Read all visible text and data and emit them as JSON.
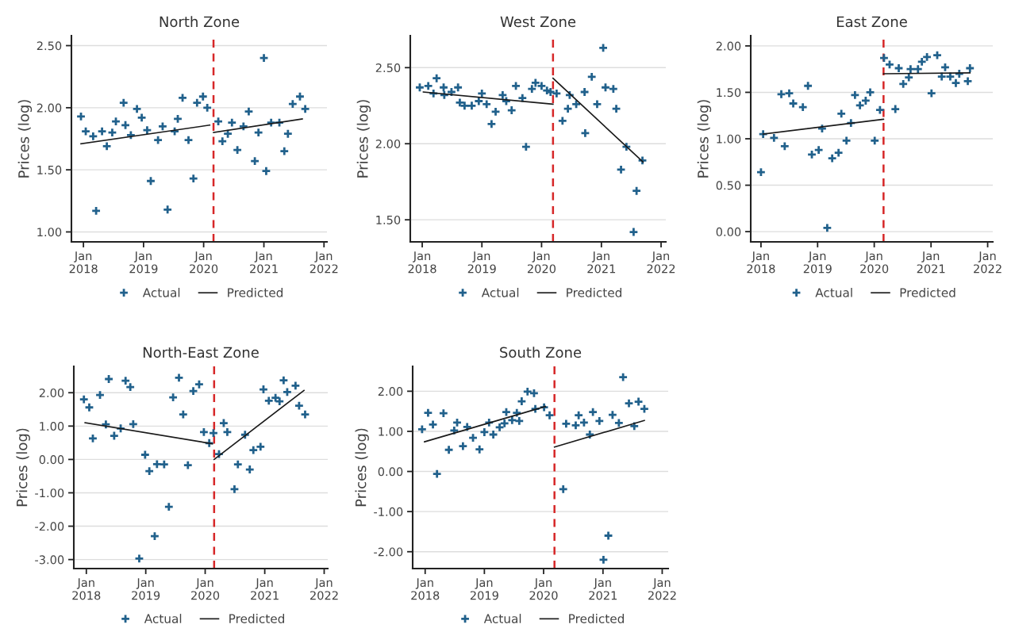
{
  "chart_data": [
    {
      "type": "scatter",
      "title": "North Zone",
      "ylabel": "Prices (log)",
      "xlim": [
        "2017-10-20",
        "2022-01-19"
      ],
      "ylim": [
        0.92,
        2.58
      ],
      "xticks": [
        {
          "value": "2018-01-01",
          "label": "Jan\n2018"
        },
        {
          "value": "2019-01-01",
          "label": "Jan\n2019"
        },
        {
          "value": "2020-01-01",
          "label": "Jan\n2020"
        },
        {
          "value": "2021-01-01",
          "label": "Jan\n2021"
        },
        {
          "value": "2022-01-01",
          "label": "Jan\n2022"
        }
      ],
      "yticks": [
        {
          "value": 1.0,
          "label": "1.00"
        },
        {
          "value": 1.5,
          "label": "1.50"
        },
        {
          "value": 2.0,
          "label": "2.00"
        },
        {
          "value": 2.5,
          "label": "2.50"
        }
      ],
      "grid": "y",
      "legend": "bottom",
      "ref_lines": [
        {
          "axis": "x",
          "value": "2020-03-01",
          "color": "#d62728",
          "line_style": "dashed"
        }
      ],
      "series": [
        {
          "name": "Actual",
          "type": "scatter",
          "marker": "cross",
          "color": "#21618c",
          "x": [
            "2017-12-17",
            "2018-01-15",
            "2018-03-01",
            "2018-03-19",
            "2018-04-24",
            "2018-05-23",
            "2018-06-25",
            "2018-07-17",
            "2018-09-02",
            "2018-09-13",
            "2018-10-16",
            "2018-11-22",
            "2018-12-21",
            "2019-01-23",
            "2019-02-14",
            "2019-03-30",
            "2019-04-27",
            "2019-05-27",
            "2019-07-09",
            "2019-07-28",
            "2019-08-26",
            "2019-10-01",
            "2019-10-31",
            "2019-11-22",
            "2019-12-28",
            "2020-01-23",
            "2020-03-30",
            "2020-04-24",
            "2020-05-27",
            "2020-06-21",
            "2020-07-24",
            "2020-08-30",
            "2020-10-01",
            "2020-11-07",
            "2020-11-29",
            "2021-01-01",
            "2021-01-15",
            "2021-02-14",
            "2021-04-05",
            "2021-05-05",
            "2021-05-27",
            "2021-06-25",
            "2021-08-08",
            "2021-09-09"
          ],
          "values": [
            1.93,
            1.81,
            1.77,
            1.17,
            1.81,
            1.69,
            1.8,
            1.89,
            2.04,
            1.86,
            1.78,
            1.99,
            1.92,
            1.82,
            1.41,
            1.74,
            1.85,
            1.18,
            1.81,
            1.91,
            2.08,
            1.74,
            1.43,
            2.04,
            2.09,
            2.0,
            1.89,
            1.73,
            1.79,
            1.88,
            1.66,
            1.85,
            1.97,
            1.57,
            1.8,
            2.4,
            1.49,
            1.88,
            1.88,
            1.65,
            1.79,
            2.03,
            2.09,
            1.99
          ]
        },
        {
          "name": "Predicted",
          "type": "line",
          "color": "#1a1a1a",
          "x": [
            "2017-12-17",
            "2020-02-07",
            null,
            "2020-03-01",
            "2021-08-22"
          ],
          "values": [
            1.71,
            1.86,
            null,
            1.8,
            1.91
          ]
        }
      ]
    },
    {
      "type": "scatter",
      "title": "West Zone",
      "ylabel": "Prices (log)",
      "xlim": [
        "2017-10-20",
        "2022-01-30"
      ],
      "ylim": [
        1.355,
        2.71
      ],
      "xticks": [
        {
          "value": "2018-01-01",
          "label": "Jan\n2018"
        },
        {
          "value": "2019-01-01",
          "label": "Jan\n2019"
        },
        {
          "value": "2020-01-01",
          "label": "Jan\n2020"
        },
        {
          "value": "2021-01-01",
          "label": "Jan\n2021"
        },
        {
          "value": "2022-01-01",
          "label": "Jan\n2022"
        }
      ],
      "yticks": [
        {
          "value": 1.5,
          "label": "1.50"
        },
        {
          "value": 2.0,
          "label": "2.00"
        },
        {
          "value": 2.5,
          "label": "2.50"
        }
      ],
      "grid": "y",
      "legend": "bottom",
      "ref_lines": [
        {
          "axis": "x",
          "value": "2020-03-11",
          "color": "#d62728",
          "line_style": "dashed"
        }
      ],
      "series": [
        {
          "name": "Actual",
          "type": "scatter",
          "marker": "cross",
          "color": "#21618c",
          "x": [
            "2017-12-17",
            "2018-02-07",
            "2018-03-11",
            "2018-03-30",
            "2018-05-12",
            "2018-05-16",
            "2018-06-29",
            "2018-08-08",
            "2018-08-19",
            "2018-09-17",
            "2018-10-31",
            "2018-12-13",
            "2019-01-01",
            "2019-01-30",
            "2019-03-01",
            "2019-03-26",
            "2019-05-08",
            "2019-05-30",
            "2019-07-02",
            "2019-07-28",
            "2019-09-06",
            "2019-09-28",
            "2019-11-03",
            "2019-11-25",
            "2020-01-01",
            "2020-02-03",
            "2020-02-25",
            "2020-04-02",
            "2020-05-08",
            "2020-06-10",
            "2020-06-21",
            "2020-07-31",
            "2020-09-20",
            "2020-09-24",
            "2020-11-03",
            "2020-12-06",
            "2021-01-12",
            "2021-01-26",
            "2021-03-15",
            "2021-04-02",
            "2021-05-01",
            "2021-06-03",
            "2021-07-17",
            "2021-08-04",
            "2021-09-09"
          ],
          "values": [
            2.37,
            2.38,
            2.33,
            2.43,
            2.37,
            2.32,
            2.34,
            2.37,
            2.27,
            2.25,
            2.25,
            2.28,
            2.33,
            2.26,
            2.13,
            2.21,
            2.32,
            2.28,
            2.22,
            2.38,
            2.3,
            1.98,
            2.36,
            2.4,
            2.38,
            2.35,
            2.34,
            2.33,
            2.15,
            2.23,
            2.32,
            2.26,
            2.34,
            2.07,
            2.44,
            2.26,
            2.63,
            2.37,
            2.36,
            2.23,
            1.83,
            1.98,
            1.42,
            1.69,
            1.89
          ]
        },
        {
          "name": "Predicted",
          "type": "line",
          "color": "#1a1a1a",
          "x": [
            "2018-01-08",
            "2020-03-11",
            null,
            "2020-03-11",
            "2021-09-13"
          ],
          "values": [
            2.34,
            2.26,
            null,
            2.43,
            1.88
          ]
        }
      ]
    },
    {
      "type": "scatter",
      "title": "East Zone",
      "ylabel": "Prices (log)",
      "xlim": [
        "2017-10-27",
        "2022-02-03"
      ],
      "ylim": [
        -0.11,
        2.11
      ],
      "xticks": [
        {
          "value": "2018-01-01",
          "label": "Jan\n2018"
        },
        {
          "value": "2019-01-01",
          "label": "Jan\n2019"
        },
        {
          "value": "2020-01-01",
          "label": "Jan\n2020"
        },
        {
          "value": "2021-01-01",
          "label": "Jan\n2021"
        },
        {
          "value": "2022-01-01",
          "label": "Jan\n2022"
        }
      ],
      "yticks": [
        {
          "value": 0.0,
          "label": "0.00"
        },
        {
          "value": 0.5,
          "label": "0.50"
        },
        {
          "value": 1.0,
          "label": "1.00"
        },
        {
          "value": 1.5,
          "label": "1.50"
        },
        {
          "value": 2.0,
          "label": "2.00"
        }
      ],
      "grid": "y",
      "legend": "bottom",
      "ref_lines": [
        {
          "axis": "x",
          "value": "2020-03-01",
          "color": "#d62728",
          "line_style": "dashed"
        }
      ],
      "series": [
        {
          "name": "Actual",
          "type": "scatter",
          "marker": "cross",
          "color": "#21618c",
          "x": [
            "2018-01-01",
            "2018-01-15",
            "2018-03-26",
            "2018-05-12",
            "2018-06-03",
            "2018-07-02",
            "2018-07-28",
            "2018-09-28",
            "2018-10-31",
            "2018-11-25",
            "2019-01-08",
            "2019-01-30",
            "2019-03-04",
            "2019-04-05",
            "2019-05-16",
            "2019-06-03",
            "2019-07-06",
            "2019-08-04",
            "2019-08-30",
            "2019-10-01",
            "2019-11-07",
            "2019-12-06",
            "2020-01-04",
            "2020-02-07",
            "2020-03-04",
            "2020-04-09",
            "2020-05-16",
            "2020-06-07",
            "2020-07-06",
            "2020-08-11",
            "2020-08-22",
            "2020-10-09",
            "2020-11-03",
            "2020-12-06",
            "2021-01-04",
            "2021-02-10",
            "2021-03-11",
            "2021-04-02",
            "2021-05-05",
            "2021-06-10",
            "2021-07-02",
            "2021-08-26",
            "2021-09-09"
          ],
          "values": [
            0.64,
            1.05,
            1.01,
            1.48,
            0.92,
            1.49,
            1.38,
            1.34,
            1.57,
            0.83,
            0.88,
            1.11,
            0.04,
            0.79,
            0.85,
            1.27,
            0.98,
            1.17,
            1.47,
            1.36,
            1.41,
            1.5,
            0.98,
            1.31,
            1.87,
            1.8,
            1.32,
            1.76,
            1.59,
            1.66,
            1.75,
            1.75,
            1.83,
            1.88,
            1.49,
            1.9,
            1.67,
            1.77,
            1.67,
            1.6,
            1.7,
            1.62,
            1.76
          ]
        },
        {
          "name": "Predicted",
          "type": "line",
          "color": "#1a1a1a",
          "x": [
            "2018-01-15",
            "2020-03-01",
            null,
            "2020-03-01",
            "2021-09-09"
          ],
          "values": [
            1.05,
            1.21,
            null,
            1.7,
            1.71
          ]
        }
      ]
    },
    {
      "type": "scatter",
      "title": "North-East Zone",
      "ylabel": "Prices (log)",
      "xlim": [
        "2017-10-16",
        "2022-01-23"
      ],
      "ylim": [
        -3.27,
        2.79
      ],
      "xticks": [
        {
          "value": "2018-01-01",
          "label": "Jan\n2018"
        },
        {
          "value": "2019-01-01",
          "label": "Jan\n2019"
        },
        {
          "value": "2020-01-01",
          "label": "Jan\n2020"
        },
        {
          "value": "2021-01-01",
          "label": "Jan\n2021"
        },
        {
          "value": "2022-01-01",
          "label": "Jan\n2022"
        }
      ],
      "yticks": [
        {
          "value": -3.0,
          "label": "-3.00"
        },
        {
          "value": -2.0,
          "label": "-2.00"
        },
        {
          "value": -1.0,
          "label": "-1.00"
        },
        {
          "value": 0.0,
          "label": "0.00"
        },
        {
          "value": 1.0,
          "label": "1.00"
        },
        {
          "value": 2.0,
          "label": "2.00"
        }
      ],
      "grid": "y",
      "legend": "bottom",
      "ref_lines": [
        {
          "axis": "x",
          "value": "2020-02-25",
          "color": "#d62728",
          "line_style": "dashed"
        }
      ],
      "series": [
        {
          "name": "Actual",
          "type": "scatter",
          "marker": "cross",
          "color": "#21618c",
          "x": [
            "2017-12-17",
            "2018-01-19",
            "2018-02-10",
            "2018-03-26",
            "2018-05-01",
            "2018-05-19",
            "2018-06-21",
            "2018-07-31",
            "2018-08-30",
            "2018-09-28",
            "2018-10-16",
            "2018-11-22",
            "2018-12-28",
            "2019-01-23",
            "2019-02-25",
            "2019-03-11",
            "2019-04-24",
            "2019-05-23",
            "2019-06-18",
            "2019-07-24",
            "2019-08-19",
            "2019-09-17",
            "2019-10-20",
            "2019-11-25",
            "2019-12-24",
            "2020-01-26",
            "2020-02-21",
            "2020-03-26",
            "2020-04-24",
            "2020-05-16",
            "2020-06-29",
            "2020-07-20",
            "2020-09-02",
            "2020-10-01",
            "2020-10-23",
            "2020-12-06",
            "2020-12-24",
            "2021-01-26",
            "2021-03-08",
            "2021-04-02",
            "2021-04-27",
            "2021-05-19",
            "2021-07-09",
            "2021-07-31",
            "2021-09-06"
          ],
          "values": [
            1.8,
            1.56,
            0.63,
            1.93,
            1.05,
            2.41,
            0.71,
            0.93,
            2.36,
            2.17,
            1.06,
            -2.97,
            0.14,
            -0.35,
            -2.3,
            -0.14,
            -0.15,
            -1.42,
            1.86,
            2.45,
            1.35,
            -0.17,
            2.05,
            2.25,
            0.82,
            0.49,
            0.79,
            0.16,
            1.09,
            0.82,
            -0.89,
            -0.15,
            0.74,
            -0.3,
            0.28,
            0.38,
            2.1,
            1.76,
            1.85,
            1.74,
            2.37,
            2.02,
            2.21,
            1.61,
            1.35
          ]
        },
        {
          "name": "Predicted",
          "type": "line",
          "color": "#1a1a1a",
          "x": [
            "2017-12-24",
            "2020-02-14",
            null,
            "2020-02-25",
            "2021-08-30"
          ],
          "values": [
            1.1,
            0.47,
            null,
            0.0,
            2.07
          ]
        }
      ]
    },
    {
      "type": "scatter",
      "title": "South Zone",
      "ylabel": "Prices (log)",
      "xlim": [
        "2017-10-16",
        "2022-02-07"
      ],
      "ylim": [
        -2.42,
        2.62
      ],
      "xticks": [
        {
          "value": "2018-01-01",
          "label": "Jan\n2018"
        },
        {
          "value": "2019-01-01",
          "label": "Jan\n2019"
        },
        {
          "value": "2020-01-01",
          "label": "Jan\n2020"
        },
        {
          "value": "2021-01-01",
          "label": "Jan\n2021"
        },
        {
          "value": "2022-01-01",
          "label": "Jan\n2022"
        }
      ],
      "yticks": [
        {
          "value": -2.0,
          "label": "-2.00"
        },
        {
          "value": -1.0,
          "label": "-1.00"
        },
        {
          "value": 0.0,
          "label": "0.00"
        },
        {
          "value": 1.0,
          "label": "1.00"
        },
        {
          "value": 2.0,
          "label": "2.00"
        }
      ],
      "grid": "y",
      "legend": "bottom",
      "ref_lines": [
        {
          "axis": "x",
          "value": "2020-03-08",
          "color": "#d62728",
          "line_style": "dashed"
        }
      ],
      "series": [
        {
          "name": "Actual",
          "type": "scatter",
          "marker": "cross",
          "color": "#21618c",
          "x": [
            "2017-12-13",
            "2018-01-19",
            "2018-02-18",
            "2018-03-15",
            "2018-04-24",
            "2018-05-27",
            "2018-06-29",
            "2018-07-17",
            "2018-08-22",
            "2018-09-17",
            "2018-10-23",
            "2018-12-02",
            "2019-01-01",
            "2019-01-30",
            "2019-02-25",
            "2019-04-05",
            "2019-05-05",
            "2019-05-16",
            "2019-06-21",
            "2019-07-20",
            "2019-08-04",
            "2019-08-19",
            "2019-09-24",
            "2019-11-03",
            "2019-11-11",
            "2020-01-04",
            "2020-02-07",
            "2020-05-01",
            "2020-05-19",
            "2020-07-17",
            "2020-08-04",
            "2020-09-06",
            "2020-10-12",
            "2020-10-31",
            "2020-12-10",
            "2021-01-04",
            "2021-02-03",
            "2021-03-01",
            "2021-04-09",
            "2021-05-05",
            "2021-06-10",
            "2021-07-13",
            "2021-08-08",
            "2021-09-13"
          ],
          "values": [
            1.05,
            1.46,
            1.17,
            -0.06,
            1.45,
            0.54,
            1.02,
            1.22,
            0.63,
            1.11,
            0.84,
            0.55,
            0.98,
            1.22,
            0.92,
            1.1,
            1.2,
            1.48,
            1.28,
            1.46,
            1.26,
            1.75,
            1.99,
            1.95,
            1.56,
            1.6,
            1.4,
            -0.44,
            1.19,
            1.15,
            1.4,
            1.22,
            0.92,
            1.48,
            1.26,
            -2.2,
            -1.6,
            1.41,
            1.21,
            2.35,
            1.7,
            1.13,
            1.74,
            1.56
          ]
        },
        {
          "name": "Predicted",
          "type": "line",
          "color": "#1a1a1a",
          "x": [
            "2017-12-28",
            "2020-01-12",
            null,
            "2020-03-08",
            "2021-09-13"
          ],
          "values": [
            0.74,
            1.62,
            null,
            0.61,
            1.27
          ]
        }
      ]
    }
  ]
}
